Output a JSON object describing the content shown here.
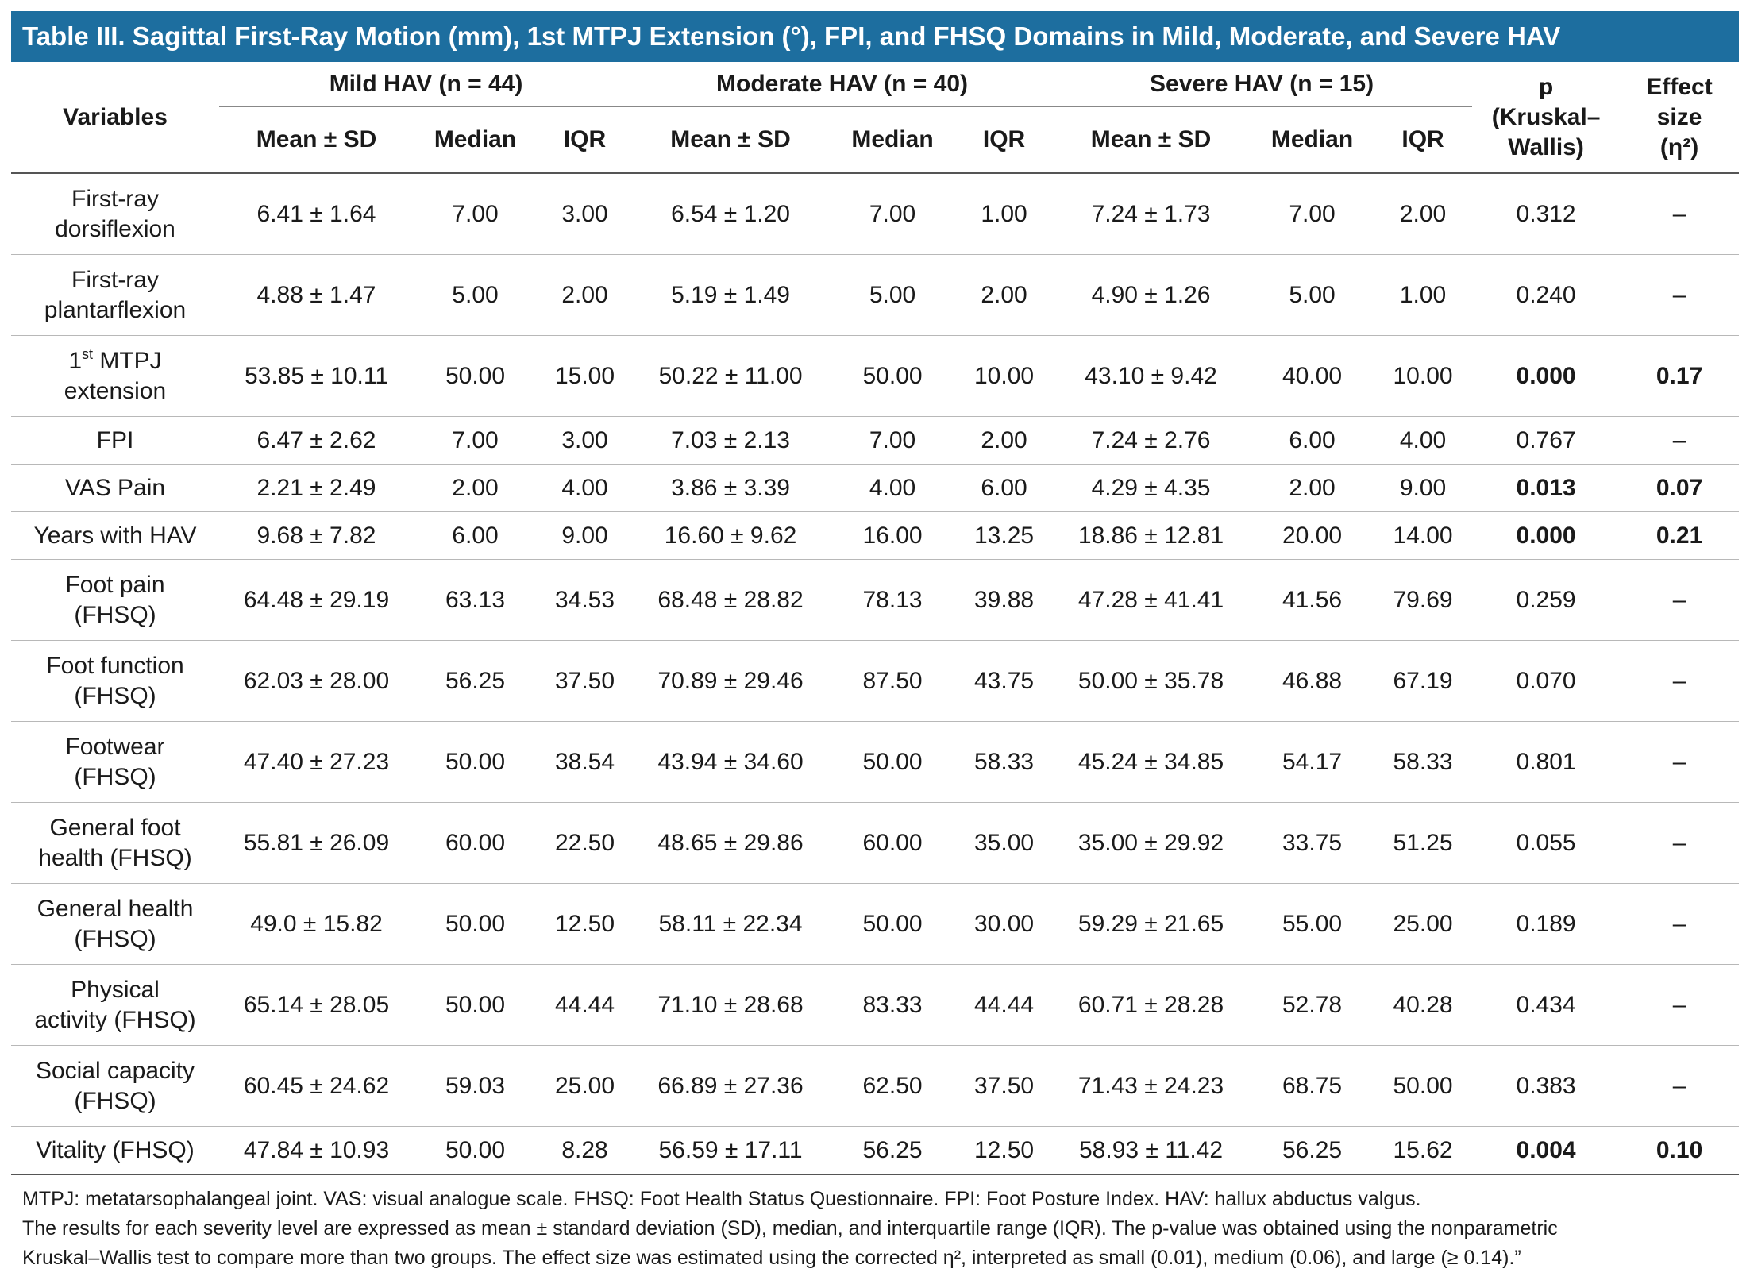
{
  "title": "Table III. Sagittal First-Ray Motion (mm), 1st MTPJ Extension (°), FPI, and FHSQ Domains in Mild, Moderate, and Severe HAV",
  "header": {
    "variables": "Variables",
    "groups": [
      "Mild HAV (n = 44)",
      "Moderate HAV (n = 40)",
      "Severe HAV (n = 15)"
    ],
    "subheaders": [
      "Mean ± SD",
      "Median",
      "IQR"
    ],
    "p": [
      "p",
      "(Kruskal–",
      "Wallis)"
    ],
    "effect": [
      "Effect",
      "size",
      "(η²)"
    ]
  },
  "rows": [
    {
      "variable": [
        "First-ray",
        "dorsiflexion"
      ],
      "cells": [
        "6.41 ± 1.64",
        "7.00",
        "3.00",
        "6.54 ± 1.20",
        "7.00",
        "1.00",
        "7.24 ± 1.73",
        "7.00",
        "2.00",
        "0.312",
        "–"
      ]
    },
    {
      "variable": [
        "First-ray",
        "plantarflexion"
      ],
      "cells": [
        "4.88 ± 1.47",
        "5.00",
        "2.00",
        "5.19 ± 1.49",
        "5.00",
        "2.00",
        "4.90 ± 1.26",
        "5.00",
        "1.00",
        "0.240",
        "–"
      ]
    },
    {
      "variable": [
        [
          "1",
          {
            "sup": "st"
          },
          " MTPJ"
        ],
        "extension"
      ],
      "cells": [
        "53.85 ± 10.11",
        "50.00",
        "15.00",
        "50.22 ± 11.00",
        "50.00",
        "10.00",
        "43.10 ± 9.42",
        "40.00",
        "10.00",
        "0.000",
        "0.17"
      ],
      "significant": true
    },
    {
      "variable": [
        "FPI"
      ],
      "cells": [
        "6.47 ± 2.62",
        "7.00",
        "3.00",
        "7.03 ± 2.13",
        "7.00",
        "2.00",
        "7.24 ± 2.76",
        "6.00",
        "4.00",
        "0.767",
        "–"
      ]
    },
    {
      "variable": [
        "VAS Pain"
      ],
      "cells": [
        "2.21 ± 2.49",
        "2.00",
        "4.00",
        "3.86 ± 3.39",
        "4.00",
        "6.00",
        "4.29 ± 4.35",
        "2.00",
        "9.00",
        "0.013",
        "0.07"
      ],
      "significant": true
    },
    {
      "variable": [
        "Years with HAV"
      ],
      "cells": [
        "9.68 ± 7.82",
        "6.00",
        "9.00",
        "16.60 ± 9.62",
        "16.00",
        "13.25",
        "18.86 ± 12.81",
        "20.00",
        "14.00",
        "0.000",
        "0.21"
      ],
      "significant": true
    },
    {
      "variable": [
        "Foot pain",
        "(FHSQ)"
      ],
      "cells": [
        "64.48 ± 29.19",
        "63.13",
        "34.53",
        "68.48 ± 28.82",
        "78.13",
        "39.88",
        "47.28 ± 41.41",
        "41.56",
        "79.69",
        "0.259",
        "–"
      ]
    },
    {
      "variable": [
        "Foot function",
        "(FHSQ)"
      ],
      "cells": [
        "62.03 ± 28.00",
        "56.25",
        "37.50",
        "70.89 ± 29.46",
        "87.50",
        "43.75",
        "50.00 ± 35.78",
        "46.88",
        "67.19",
        "0.070",
        "–"
      ]
    },
    {
      "variable": [
        "Footwear",
        "(FHSQ)"
      ],
      "cells": [
        "47.40 ± 27.23",
        "50.00",
        "38.54",
        "43.94 ± 34.60",
        "50.00",
        "58.33",
        "45.24 ± 34.85",
        "54.17",
        "58.33",
        "0.801",
        "–"
      ]
    },
    {
      "variable": [
        "General foot",
        "health (FHSQ)"
      ],
      "cells": [
        "55.81 ± 26.09",
        "60.00",
        "22.50",
        "48.65 ± 29.86",
        "60.00",
        "35.00",
        "35.00 ± 29.92",
        "33.75",
        "51.25",
        "0.055",
        "–"
      ]
    },
    {
      "variable": [
        "General health",
        "(FHSQ)"
      ],
      "cells": [
        "49.0 ± 15.82",
        "50.00",
        "12.50",
        "58.11 ± 22.34",
        "50.00",
        "30.00",
        "59.29 ± 21.65",
        "55.00",
        "25.00",
        "0.189",
        "–"
      ]
    },
    {
      "variable": [
        "Physical",
        "activity (FHSQ)"
      ],
      "cells": [
        "65.14 ± 28.05",
        "50.00",
        "44.44",
        "71.10 ± 28.68",
        "83.33",
        "44.44",
        "60.71 ± 28.28",
        "52.78",
        "40.28",
        "0.434",
        "–"
      ]
    },
    {
      "variable": [
        "Social capacity",
        "(FHSQ)"
      ],
      "cells": [
        "60.45 ± 24.62",
        "59.03",
        "25.00",
        "66.89 ± 27.36",
        "62.50",
        "37.50",
        "71.43 ± 24.23",
        "68.75",
        "50.00",
        "0.383",
        "–"
      ]
    },
    {
      "variable": [
        "Vitality (FHSQ)"
      ],
      "cells": [
        "47.84 ± 10.93",
        "50.00",
        "8.28",
        "56.59 ± 17.11",
        "56.25",
        "12.50",
        "58.93 ± 11.42",
        "56.25",
        "15.62",
        "0.004",
        "0.10"
      ],
      "significant": true
    }
  ],
  "footnotes": [
    "MTPJ: metatarsophalangeal joint. VAS: visual analogue scale. FHSQ: Foot Health Status Questionnaire. FPI: Foot Posture Index. HAV: hallux abductus valgus.",
    "The results for each severity level are expressed as mean ± standard deviation (SD), median, and interquartile range (IQR). The p-value was obtained using the nonparametric",
    "Kruskal–Wallis test to compare more than two groups. The effect size was estimated using the corrected η², interpreted as small (0.01), medium (0.06), and large (≥ 0.14).”"
  ]
}
